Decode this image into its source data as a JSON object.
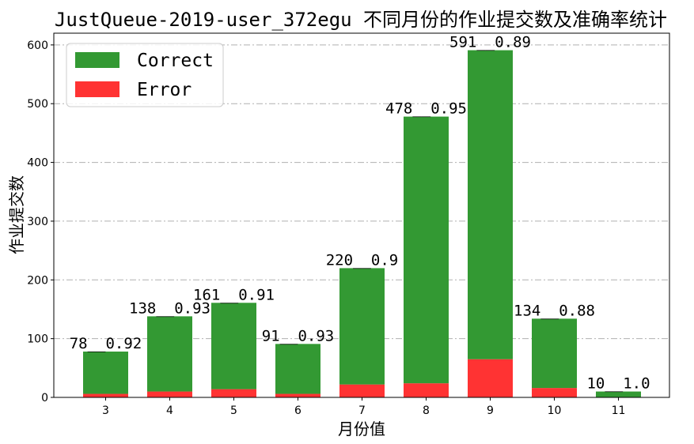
{
  "chart_data": {
    "type": "bar",
    "stacked": true,
    "title": "JustQueue-2019-user_372egu 不同月份的作业提交数及准确率统计",
    "xlabel": "月份值",
    "ylabel": "作业提交数",
    "categories": [
      "3",
      "4",
      "5",
      "6",
      "7",
      "8",
      "9",
      "10",
      "11"
    ],
    "ylim": [
      0,
      620
    ],
    "yticks": [
      0,
      100,
      200,
      300,
      400,
      500,
      600
    ],
    "grid": true,
    "legend_position": "top-left",
    "series": [
      {
        "name": "Error",
        "color": "#ff3333",
        "values": [
          6,
          10,
          14,
          6,
          22,
          24,
          65,
          16,
          0
        ]
      },
      {
        "name": "Correct",
        "color": "#339933",
        "values": [
          72,
          128,
          147,
          85,
          198,
          454,
          526,
          118,
          10
        ]
      }
    ],
    "totals": [
      78,
      138,
      161,
      91,
      220,
      478,
      591,
      134,
      10
    ],
    "bar_labels": [
      "78__0.92",
      "138__0.93",
      "161__0.91",
      "91__0.93",
      "220__0.9",
      "478__0.95",
      "591__0.89",
      "134__0.88",
      "10__1.0"
    ],
    "legend": [
      {
        "label": "Correct",
        "color": "#339933"
      },
      {
        "label": "Error",
        "color": "#ff3333"
      }
    ]
  }
}
